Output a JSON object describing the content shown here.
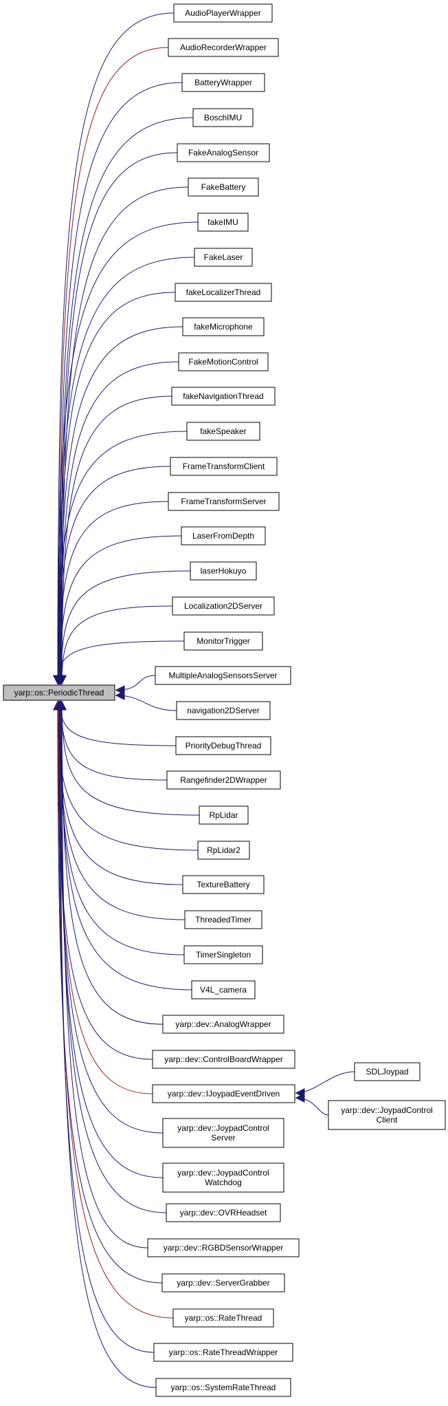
{
  "edge_colors": {
    "public": "#191970",
    "protected": "#8b1a1a"
  },
  "root": {
    "label": "yarp::os::PeriodicThread"
  },
  "nodes": [
    {
      "lines": [
        "AudioPlayerWrapper"
      ],
      "edge": "public"
    },
    {
      "lines": [
        "AudioRecorderWrapper"
      ],
      "edge": "protected"
    },
    {
      "lines": [
        "BatteryWrapper"
      ],
      "edge": "public"
    },
    {
      "lines": [
        "BoschIMU"
      ],
      "edge": "public"
    },
    {
      "lines": [
        "FakeAnalogSensor"
      ],
      "edge": "public"
    },
    {
      "lines": [
        "FakeBattery"
      ],
      "edge": "public"
    },
    {
      "lines": [
        "fakeIMU"
      ],
      "edge": "public"
    },
    {
      "lines": [
        "FakeLaser"
      ],
      "edge": "public"
    },
    {
      "lines": [
        "fakeLocalizerThread"
      ],
      "edge": "public"
    },
    {
      "lines": [
        "fakeMicrophone"
      ],
      "edge": "public"
    },
    {
      "lines": [
        "FakeMotionControl"
      ],
      "edge": "public"
    },
    {
      "lines": [
        "fakeNavigationThread"
      ],
      "edge": "public"
    },
    {
      "lines": [
        "fakeSpeaker"
      ],
      "edge": "public"
    },
    {
      "lines": [
        "FrameTransformClient"
      ],
      "edge": "public"
    },
    {
      "lines": [
        "FrameTransformServer"
      ],
      "edge": "public"
    },
    {
      "lines": [
        "LaserFromDepth"
      ],
      "edge": "public"
    },
    {
      "lines": [
        "laserHokuyo"
      ],
      "edge": "public"
    },
    {
      "lines": [
        "Localization2DServer"
      ],
      "edge": "public"
    },
    {
      "lines": [
        "MonitorTrigger"
      ],
      "edge": "public"
    },
    {
      "lines": [
        "MultipleAnalogSensorsServer"
      ],
      "edge": "public"
    },
    {
      "lines": [
        "navigation2DServer"
      ],
      "edge": "public"
    },
    {
      "lines": [
        "PriorityDebugThread"
      ],
      "edge": "public"
    },
    {
      "lines": [
        "Rangefinder2DWrapper"
      ],
      "edge": "public"
    },
    {
      "lines": [
        "RpLidar"
      ],
      "edge": "public"
    },
    {
      "lines": [
        "RpLidar2"
      ],
      "edge": "public"
    },
    {
      "lines": [
        "TextureBattery"
      ],
      "edge": "public"
    },
    {
      "lines": [
        "ThreadedTimer"
      ],
      "edge": "public"
    },
    {
      "lines": [
        "TimerSingleton"
      ],
      "edge": "public"
    },
    {
      "lines": [
        "V4L_camera"
      ],
      "edge": "public"
    },
    {
      "lines": [
        "yarp::dev::AnalogWrapper"
      ],
      "edge": "public"
    },
    {
      "lines": [
        "yarp::dev::ControlBoardWrapper"
      ],
      "edge": "public"
    },
    {
      "lines": [
        "yarp::dev::IJoypadEventDriven"
      ],
      "edge": "protected"
    },
    {
      "lines": [
        "yarp::dev::JoypadControl",
        "Server"
      ],
      "edge": "public"
    },
    {
      "lines": [
        "yarp::dev::JoypadControl",
        "Watchdog"
      ],
      "edge": "public"
    },
    {
      "lines": [
        "yarp::dev::OVRHeadset"
      ],
      "edge": "public"
    },
    {
      "lines": [
        "yarp::dev::RGBDSensorWrapper"
      ],
      "edge": "public"
    },
    {
      "lines": [
        "yarp::dev::ServerGrabber"
      ],
      "edge": "public"
    },
    {
      "lines": [
        "yarp::os::RateThread"
      ],
      "edge": "protected"
    },
    {
      "lines": [
        "yarp::os::RateThreadWrapper"
      ],
      "edge": "public"
    },
    {
      "lines": [
        "yarp::os::SystemRateThread"
      ],
      "edge": "public"
    }
  ],
  "subclasses": {
    "parent": "yarp::dev::IJoypadEventDriven",
    "children": [
      {
        "lines": [
          "SDLJoypad"
        ]
      },
      {
        "lines": [
          "yarp::dev::JoypadControl",
          "Client"
        ]
      }
    ]
  }
}
